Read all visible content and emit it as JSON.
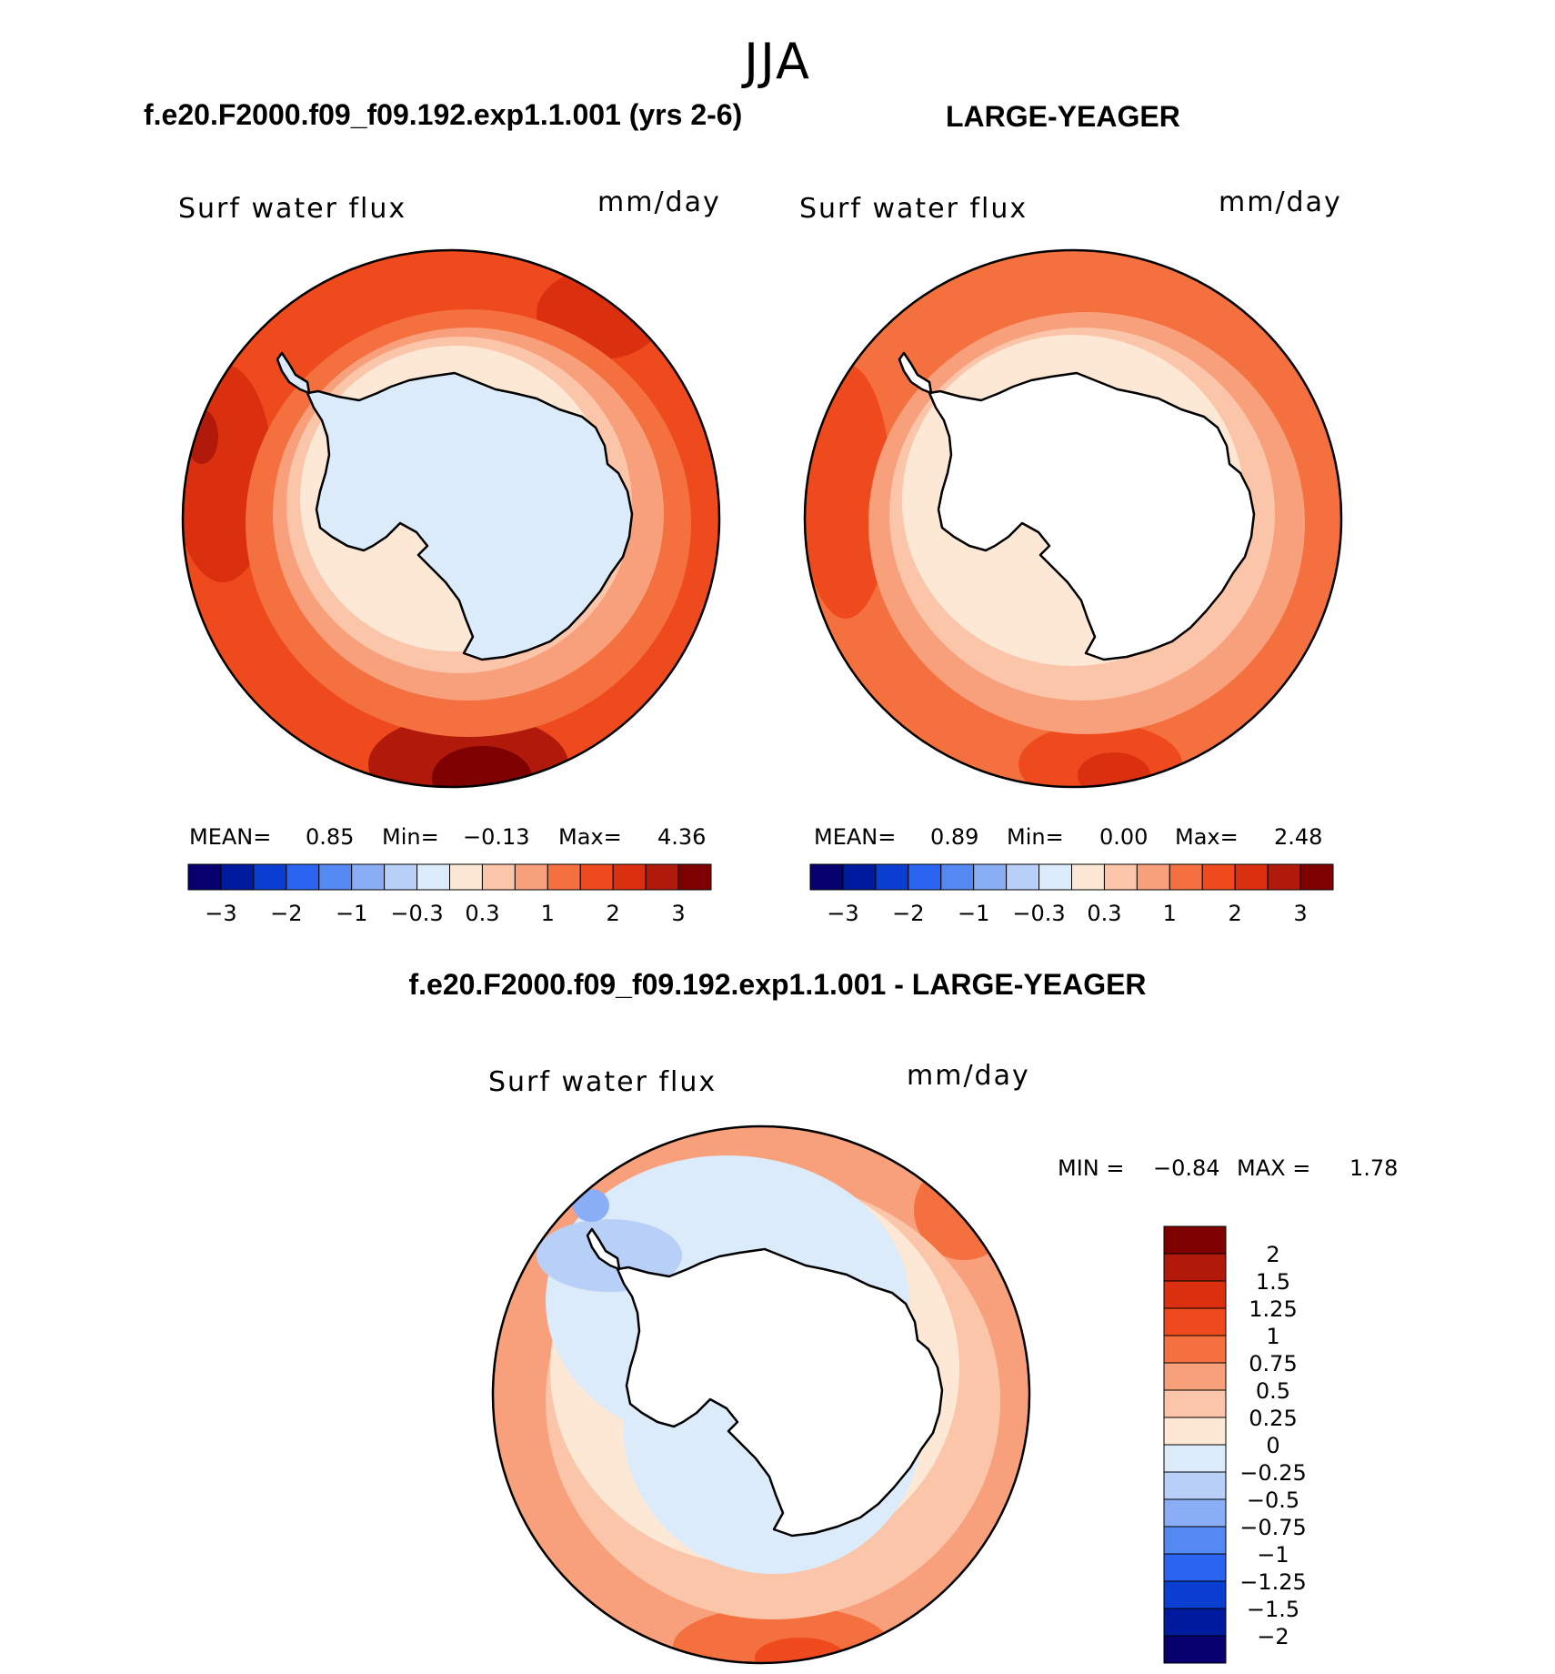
{
  "header": {
    "season": "JJA",
    "case_title": "f.e20.F2000.f09_f09.192.exp1.1.001 (yrs 2-6)",
    "obs_title": "LARGE-YEAGER",
    "diff_title": "f.e20.F2000.f09_f09.192.exp1.1.001 - LARGE-YEAGER"
  },
  "panels": {
    "case": {
      "variable": "Surf water flux",
      "units": "mm/day",
      "stats": {
        "mean_label": "MEAN=",
        "mean": "0.85",
        "min_label": "Min=",
        "min": "−0.13",
        "max_label": "Max=",
        "max": "4.36"
      }
    },
    "obs": {
      "variable": "Surf water flux",
      "units": "mm/day",
      "stats": {
        "mean_label": "MEAN=",
        "mean": "0.89",
        "min_label": "Min=",
        "min": "0.00",
        "max_label": "Max=",
        "max": "2.48"
      }
    },
    "diff": {
      "variable": "Surf water flux",
      "units": "mm/day",
      "stats": {
        "min_label": "MIN =",
        "min": "−0.84",
        "max_label": "MAX =",
        "max": "1.78"
      }
    }
  },
  "colorbar_horizontal": {
    "labels": [
      "−3",
      "−2",
      "−1",
      "−0.3",
      "0.3",
      "1",
      "2",
      "3"
    ],
    "colors": [
      "#08006e",
      "#001a9e",
      "#0a3fd1",
      "#2a64f0",
      "#5489f2",
      "#8aaef5",
      "#b8cff7",
      "#dcebfa",
      "#fde8d6",
      "#fbc5a9",
      "#f89f7c",
      "#f4703f",
      "#ef4a1d",
      "#db300f",
      "#b11a0a",
      "#7f0000"
    ]
  },
  "colorbar_vertical": {
    "labels": [
      "2",
      "1.5",
      "1.25",
      "1",
      "0.75",
      "0.5",
      "0.25",
      "0",
      "−0.25",
      "−0.5",
      "−0.75",
      "−1",
      "−1.25",
      "−1.5",
      "−2"
    ],
    "colors": [
      "#7f0000",
      "#b11a0a",
      "#db300f",
      "#ef4a1d",
      "#f4703f",
      "#f89f7c",
      "#fbc5a9",
      "#fde8d6",
      "#dcebfa",
      "#b8cff7",
      "#8aaef5",
      "#5489f2",
      "#2a64f0",
      "#0a3fd1",
      "#001a9e",
      "#08006e"
    ]
  },
  "map_fields": {
    "case": {
      "outer": "#ef4a1d",
      "ring": "#f4703f",
      "mid": "#f89f7c",
      "inner": "#fde8d6",
      "land": "#dcebfa"
    },
    "obs": {
      "outer": "#f4703f",
      "ring": "#f89f7c",
      "mid": "#fbc5a9",
      "inner": "#fde8d6",
      "land": "#ffffff"
    },
    "diff": {
      "outer": "#f89f7c",
      "ring": "#fbc5a9",
      "mid": "#fde8d6",
      "inner": "#dcebfa",
      "land": "#ffffff"
    }
  }
}
